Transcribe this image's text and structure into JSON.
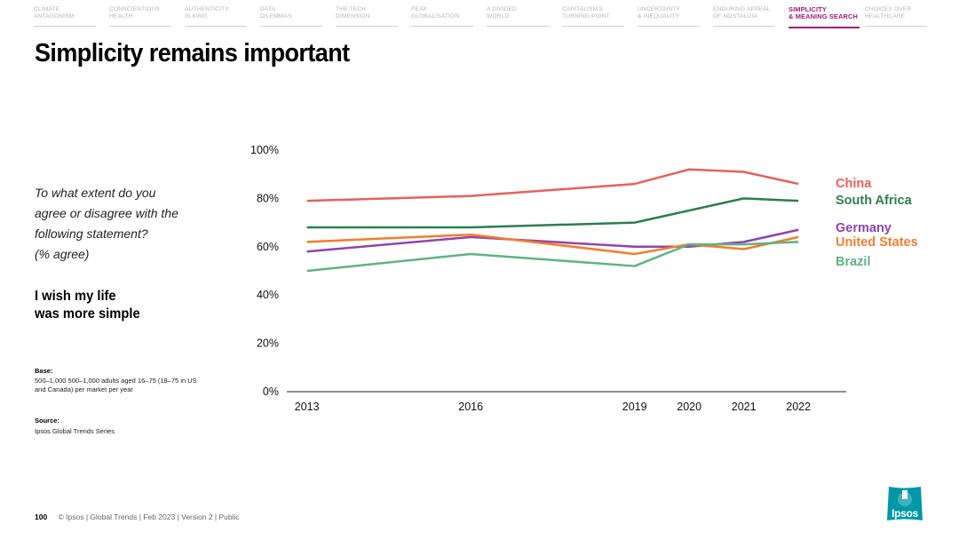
{
  "nav": {
    "items": [
      {
        "label": "CLIMATE\nANTAGONISM",
        "active": false
      },
      {
        "label": "CONSCIENTIOUS\nHEALTH",
        "active": false
      },
      {
        "label": "AUTHENTICITY\nIS KING",
        "active": false
      },
      {
        "label": "DATA\nDILEMMAS",
        "active": false
      },
      {
        "label": "THE TECH\nDIMENSION",
        "active": false
      },
      {
        "label": "PEAK\nGLOBALISATION",
        "active": false
      },
      {
        "label": "A DIVIDED\nWORLD",
        "active": false
      },
      {
        "label": "CAPITALISM'S\nTURNING POINT",
        "active": false
      },
      {
        "label": "UNCERTAINTY\n& INEQUALITY",
        "active": false
      },
      {
        "label": "ENDURING APPEAL\nOF NOSTALGIA",
        "active": false
      },
      {
        "label": "SIMPLICITY\n& MEANING SEARCH",
        "active": true
      },
      {
        "label": "CHOICES OVER\nHEALTHCARE",
        "active": false
      }
    ]
  },
  "page": {
    "title": "Simplicity remains important",
    "question": "To what extent do you\nagree or disagree with the\nfollowing statement?\n(% agree)",
    "statement": "I wish my life\nwas more simple",
    "base_heading": "Base:",
    "base_text": "500–1,000 500–1,000 adults aged 16–75 (18–75 in US and Canada) per market per year",
    "source_heading": "Source:",
    "source_text": "Ipsos Global Trends Series"
  },
  "footer": {
    "page_number": "100",
    "text": "© Ipsos | Global Trends | Feb 2023 | Version 2 | Public"
  },
  "logo": {
    "text": "Ipsos",
    "color": "#0098a6"
  },
  "colors": {
    "accent": "#a3197c"
  },
  "chart_data": {
    "type": "line",
    "x": [
      2013,
      2016,
      2019,
      2020,
      2021,
      2022
    ],
    "categories": [
      "2013",
      "2016",
      "2019",
      "2020",
      "2021",
      "2022"
    ],
    "ylim": [
      0,
      100
    ],
    "yticks": [
      "0%",
      "20%",
      "40%",
      "60%",
      "80%",
      "100%"
    ],
    "ytick_values": [
      0,
      20,
      40,
      60,
      80,
      100
    ],
    "grid": false,
    "legend_position": "right",
    "series": [
      {
        "name": "China",
        "color": "#e8605c",
        "values": [
          79,
          81,
          86,
          92,
          91,
          86
        ]
      },
      {
        "name": "South Africa",
        "color": "#2e7d4f",
        "values": [
          68,
          68,
          70,
          75,
          80,
          79
        ]
      },
      {
        "name": "Germany",
        "color": "#8e44ad",
        "values": [
          58,
          64,
          60,
          60,
          62,
          67
        ]
      },
      {
        "name": "United States",
        "color": "#f47c2c",
        "values": [
          62,
          65,
          57,
          61,
          59,
          64
        ]
      },
      {
        "name": "Brazil",
        "color": "#5fb383",
        "values": [
          50,
          57,
          52,
          61,
          61,
          62
        ]
      }
    ]
  }
}
